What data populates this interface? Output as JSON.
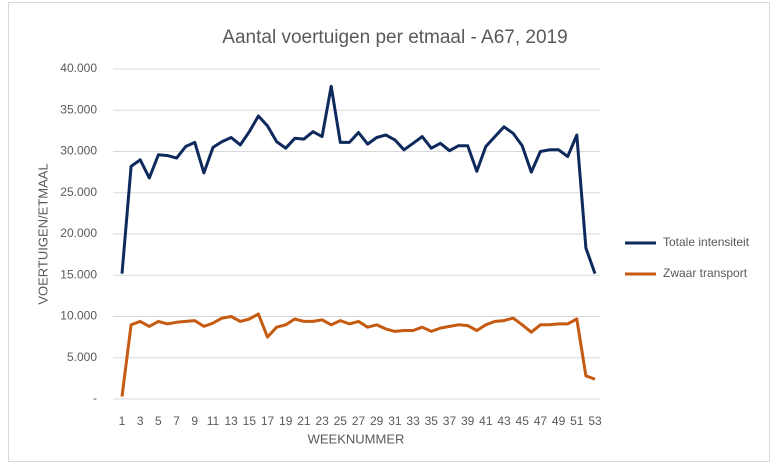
{
  "chart_data": {
    "type": "line",
    "title": "Aantal voertuigen per etmaal  - A67, 2019",
    "x_label": "WEEKNUMMER",
    "y_label": "VOERTUIGEN/ETMAAL",
    "categories": [
      1,
      null,
      3,
      null,
      5,
      null,
      7,
      null,
      9,
      null,
      11,
      null,
      13,
      null,
      15,
      null,
      17,
      null,
      19,
      null,
      21,
      null,
      23,
      null,
      25,
      null,
      27,
      null,
      29,
      null,
      31,
      null,
      33,
      null,
      35,
      null,
      37,
      null,
      39,
      null,
      41,
      null,
      43,
      null,
      45,
      null,
      47,
      null,
      49,
      null,
      51,
      null,
      53
    ],
    "series": [
      {
        "name": "Totale intensiteit",
        "color": "#0e2a5c",
        "values": [
          15200,
          28200,
          29000,
          26800,
          29600,
          29500,
          29200,
          30600,
          31100,
          27400,
          30500,
          31200,
          31700,
          30800,
          32400,
          34300,
          33100,
          31200,
          30400,
          31600,
          31500,
          32400,
          31800,
          37900,
          31100,
          31100,
          32300,
          30900,
          31700,
          32000,
          31400,
          30200,
          31000,
          31800,
          30400,
          31000,
          30100,
          30700,
          30700,
          27600,
          30600,
          31800,
          33000,
          32200,
          30700,
          27500,
          30000,
          30200,
          30200,
          29400,
          32000,
          18300,
          15200
        ]
      },
      {
        "name": "Zwaar transport",
        "color": "#c55a11",
        "values": [
          300,
          9000,
          9400,
          8800,
          9400,
          9100,
          9300,
          9400,
          9500,
          8800,
          9200,
          9800,
          10000,
          9400,
          9700,
          10300,
          7500,
          8700,
          9000,
          9700,
          9400,
          9400,
          9600,
          9000,
          9500,
          9100,
          9400,
          8700,
          9000,
          8500,
          8200,
          8300,
          8300,
          8700,
          8200,
          8600,
          8800,
          9000,
          8900,
          8300,
          9000,
          9400,
          9500,
          9800,
          9000,
          8100,
          9000,
          9000,
          9100,
          9100,
          9700,
          2800,
          2400
        ]
      }
    ],
    "ylim": [
      0,
      40000
    ],
    "yticks": [
      {
        "value": 0,
        "label": "-"
      },
      {
        "value": 5000,
        "label": "5.000"
      },
      {
        "value": 10000,
        "label": "10.000"
      },
      {
        "value": 15000,
        "label": "15.000"
      },
      {
        "value": 20000,
        "label": "20.000"
      },
      {
        "value": 25000,
        "label": "25.000"
      },
      {
        "value": 30000,
        "label": "30.000"
      },
      {
        "value": 35000,
        "label": "35.000"
      },
      {
        "value": 40000,
        "label": "40.000"
      }
    ],
    "grid": true,
    "legend": "right"
  }
}
